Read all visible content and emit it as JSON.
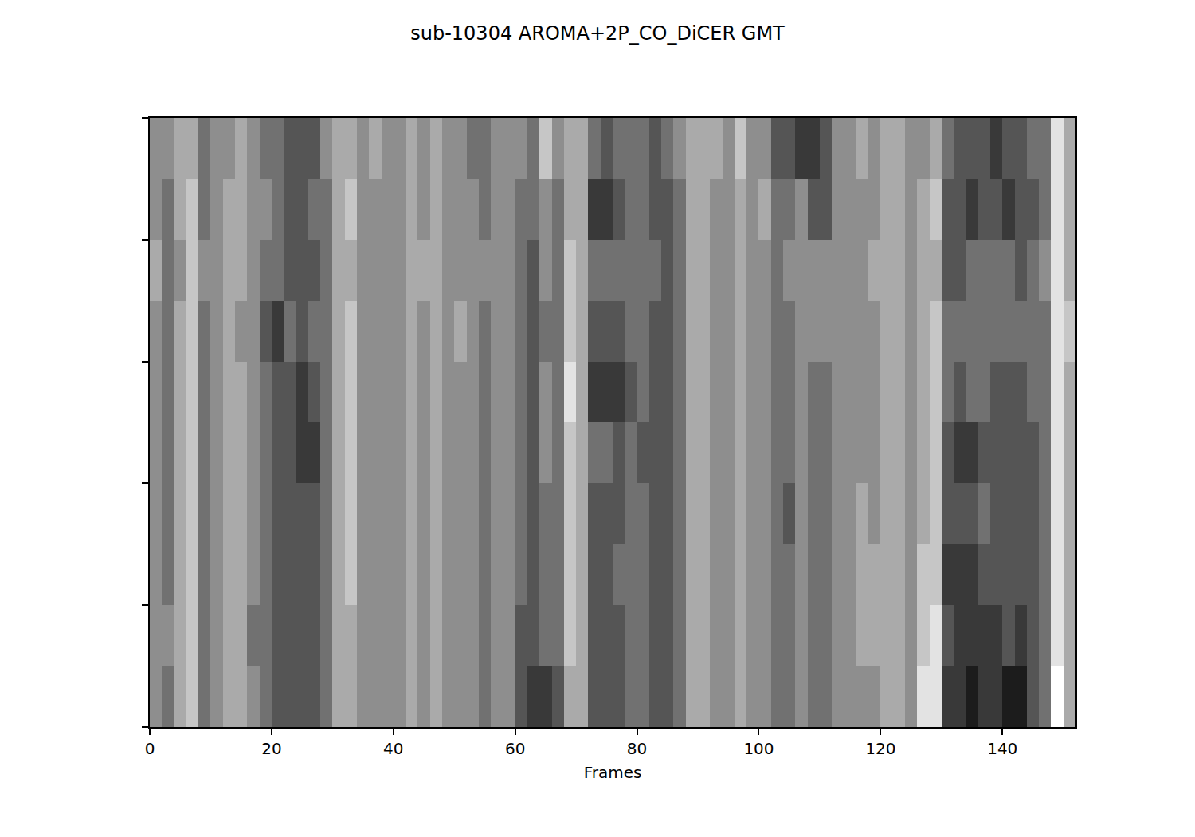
{
  "chart_data": {
    "type": "heatmap",
    "title": "sub-10304 AROMA+2P_CO_DiCER GMT",
    "x_label": "Frames",
    "x": [
      1,
      3,
      5,
      7,
      9,
      11,
      13,
      15,
      17,
      19,
      21,
      23,
      25,
      27,
      29,
      31,
      33,
      35,
      37,
      39,
      41,
      43,
      45,
      47,
      49,
      51,
      53,
      55,
      57,
      59,
      61,
      63,
      65,
      67,
      69,
      71,
      73,
      75,
      77,
      79,
      81,
      83,
      85,
      87,
      89,
      91,
      93,
      95,
      97,
      99,
      101,
      103,
      105,
      107,
      109,
      111,
      113,
      115,
      117,
      119,
      121,
      123,
      125,
      127,
      129,
      131,
      133,
      135,
      137,
      139,
      141,
      143,
      145,
      147,
      149,
      151
    ],
    "y": [
      0.5,
      1.5,
      2.5,
      3.5,
      4.5,
      5.5,
      6.5,
      7.5,
      8.5,
      9.5
    ],
    "cells": [
      [
        5,
        4,
        6,
        7,
        4,
        5,
        6,
        6,
        5,
        4,
        3,
        3,
        3,
        3,
        4,
        6,
        6,
        5,
        5,
        5,
        5,
        6,
        5,
        6,
        5,
        5,
        5,
        4,
        5,
        5,
        3,
        2,
        2,
        3,
        6,
        6,
        3,
        3,
        3,
        4,
        4,
        3,
        3,
        4,
        6,
        6,
        5,
        5,
        6,
        5,
        5,
        4,
        4,
        5,
        4,
        4,
        5,
        5,
        5,
        5,
        6,
        6,
        5,
        8,
        8,
        2,
        2,
        1,
        2,
        2,
        1,
        1,
        3,
        4,
        9,
        6
      ],
      [
        5,
        5,
        6,
        7,
        4,
        5,
        6,
        6,
        4,
        4,
        3,
        3,
        3,
        3,
        4,
        6,
        6,
        5,
        5,
        5,
        5,
        6,
        5,
        6,
        5,
        5,
        5,
        4,
        5,
        5,
        3,
        3,
        4,
        4,
        7,
        6,
        3,
        3,
        3,
        4,
        4,
        3,
        3,
        4,
        6,
        6,
        5,
        5,
        6,
        5,
        5,
        4,
        4,
        5,
        4,
        4,
        5,
        5,
        6,
        6,
        6,
        6,
        5,
        7,
        8,
        3,
        2,
        2,
        2,
        2,
        3,
        2,
        3,
        4,
        8,
        6
      ],
      [
        5,
        4,
        6,
        7,
        4,
        5,
        6,
        6,
        5,
        4,
        3,
        3,
        3,
        3,
        4,
        6,
        7,
        5,
        5,
        5,
        5,
        6,
        5,
        6,
        5,
        5,
        5,
        4,
        5,
        5,
        4,
        3,
        4,
        4,
        7,
        6,
        3,
        3,
        4,
        4,
        4,
        3,
        3,
        4,
        6,
        6,
        5,
        5,
        6,
        5,
        5,
        4,
        4,
        5,
        4,
        4,
        5,
        5,
        6,
        6,
        6,
        6,
        5,
        7,
        7,
        2,
        2,
        2,
        3,
        3,
        3,
        3,
        3,
        4,
        8,
        6
      ],
      [
        5,
        4,
        6,
        7,
        4,
        5,
        6,
        6,
        5,
        4,
        3,
        3,
        3,
        3,
        4,
        6,
        7,
        5,
        5,
        5,
        5,
        6,
        5,
        6,
        5,
        5,
        5,
        4,
        5,
        5,
        4,
        3,
        4,
        4,
        7,
        6,
        3,
        3,
        3,
        4,
        4,
        3,
        3,
        4,
        6,
        6,
        5,
        5,
        6,
        5,
        5,
        4,
        3,
        5,
        4,
        4,
        5,
        5,
        6,
        5,
        6,
        6,
        5,
        6,
        7,
        3,
        3,
        3,
        4,
        3,
        3,
        3,
        3,
        4,
        8,
        6
      ],
      [
        5,
        4,
        6,
        7,
        4,
        5,
        6,
        6,
        5,
        4,
        3,
        3,
        2,
        2,
        4,
        6,
        7,
        5,
        5,
        5,
        5,
        6,
        5,
        6,
        5,
        5,
        5,
        4,
        5,
        5,
        4,
        3,
        5,
        4,
        7,
        6,
        4,
        4,
        3,
        4,
        3,
        3,
        3,
        4,
        6,
        6,
        5,
        5,
        6,
        5,
        5,
        4,
        4,
        5,
        4,
        4,
        5,
        5,
        5,
        5,
        6,
        6,
        5,
        6,
        7,
        3,
        2,
        2,
        3,
        3,
        3,
        3,
        3,
        4,
        8,
        6
      ],
      [
        5,
        4,
        6,
        7,
        4,
        5,
        6,
        6,
        5,
        4,
        3,
        3,
        2,
        3,
        4,
        6,
        7,
        5,
        5,
        5,
        5,
        6,
        5,
        6,
        5,
        5,
        5,
        4,
        5,
        5,
        4,
        3,
        5,
        4,
        8,
        6,
        2,
        2,
        2,
        3,
        4,
        3,
        3,
        4,
        6,
        6,
        5,
        5,
        6,
        5,
        5,
        4,
        4,
        5,
        4,
        4,
        5,
        5,
        5,
        5,
        6,
        6,
        5,
        6,
        7,
        4,
        3,
        4,
        4,
        3,
        3,
        3,
        4,
        4,
        8,
        6
      ],
      [
        5,
        4,
        6,
        7,
        4,
        5,
        6,
        5,
        5,
        3,
        2,
        4,
        3,
        4,
        4,
        6,
        7,
        5,
        5,
        5,
        5,
        6,
        5,
        6,
        5,
        6,
        5,
        4,
        5,
        5,
        4,
        3,
        4,
        4,
        7,
        6,
        3,
        3,
        3,
        4,
        4,
        3,
        3,
        4,
        6,
        6,
        5,
        5,
        6,
        5,
        5,
        4,
        4,
        5,
        5,
        5,
        5,
        5,
        5,
        5,
        6,
        6,
        5,
        6,
        7,
        4,
        4,
        4,
        4,
        4,
        4,
        4,
        4,
        4,
        8,
        7
      ],
      [
        6,
        4,
        5,
        7,
        5,
        5,
        6,
        6,
        5,
        4,
        4,
        3,
        3,
        3,
        4,
        6,
        6,
        5,
        5,
        5,
        5,
        6,
        6,
        6,
        5,
        5,
        5,
        5,
        5,
        5,
        4,
        3,
        5,
        4,
        7,
        6,
        4,
        4,
        4,
        4,
        4,
        4,
        3,
        4,
        6,
        6,
        5,
        5,
        6,
        5,
        5,
        4,
        5,
        5,
        5,
        5,
        5,
        5,
        5,
        6,
        6,
        6,
        5,
        6,
        6,
        3,
        3,
        4,
        4,
        4,
        4,
        3,
        4,
        5,
        8,
        6
      ],
      [
        5,
        4,
        6,
        7,
        4,
        5,
        6,
        6,
        5,
        5,
        4,
        3,
        3,
        4,
        4,
        6,
        7,
        5,
        5,
        5,
        5,
        6,
        5,
        6,
        5,
        5,
        5,
        4,
        5,
        5,
        4,
        4,
        5,
        4,
        6,
        6,
        2,
        2,
        3,
        4,
        4,
        3,
        3,
        4,
        6,
        6,
        5,
        5,
        6,
        5,
        6,
        4,
        4,
        5,
        3,
        3,
        5,
        5,
        5,
        5,
        6,
        6,
        5,
        6,
        7,
        3,
        3,
        2,
        3,
        3,
        2,
        3,
        3,
        4,
        8,
        6
      ],
      [
        5,
        5,
        6,
        6,
        4,
        5,
        5,
        6,
        5,
        4,
        4,
        3,
        3,
        3,
        5,
        6,
        6,
        5,
        6,
        5,
        5,
        6,
        5,
        6,
        5,
        5,
        4,
        4,
        5,
        5,
        5,
        4,
        7,
        5,
        6,
        6,
        4,
        3,
        4,
        4,
        4,
        3,
        4,
        5,
        6,
        6,
        6,
        5,
        7,
        5,
        5,
        3,
        3,
        2,
        2,
        3,
        5,
        5,
        6,
        5,
        6,
        6,
        5,
        5,
        6,
        4,
        3,
        3,
        3,
        2,
        3,
        3,
        4,
        4,
        8,
        6
      ]
    ],
    "zlim": [
      0,
      9
    ],
    "colors": [
      "#000000",
      "#ffffff"
    ],
    "xlim": [
      0,
      152
    ],
    "xticks": [
      0,
      20,
      40,
      60,
      80,
      100,
      120,
      140
    ],
    "ylim": [
      0,
      10
    ],
    "yticks": [
      0,
      2,
      4,
      6,
      8,
      10
    ],
    "tick_labels": "x",
    "grid": false
  }
}
